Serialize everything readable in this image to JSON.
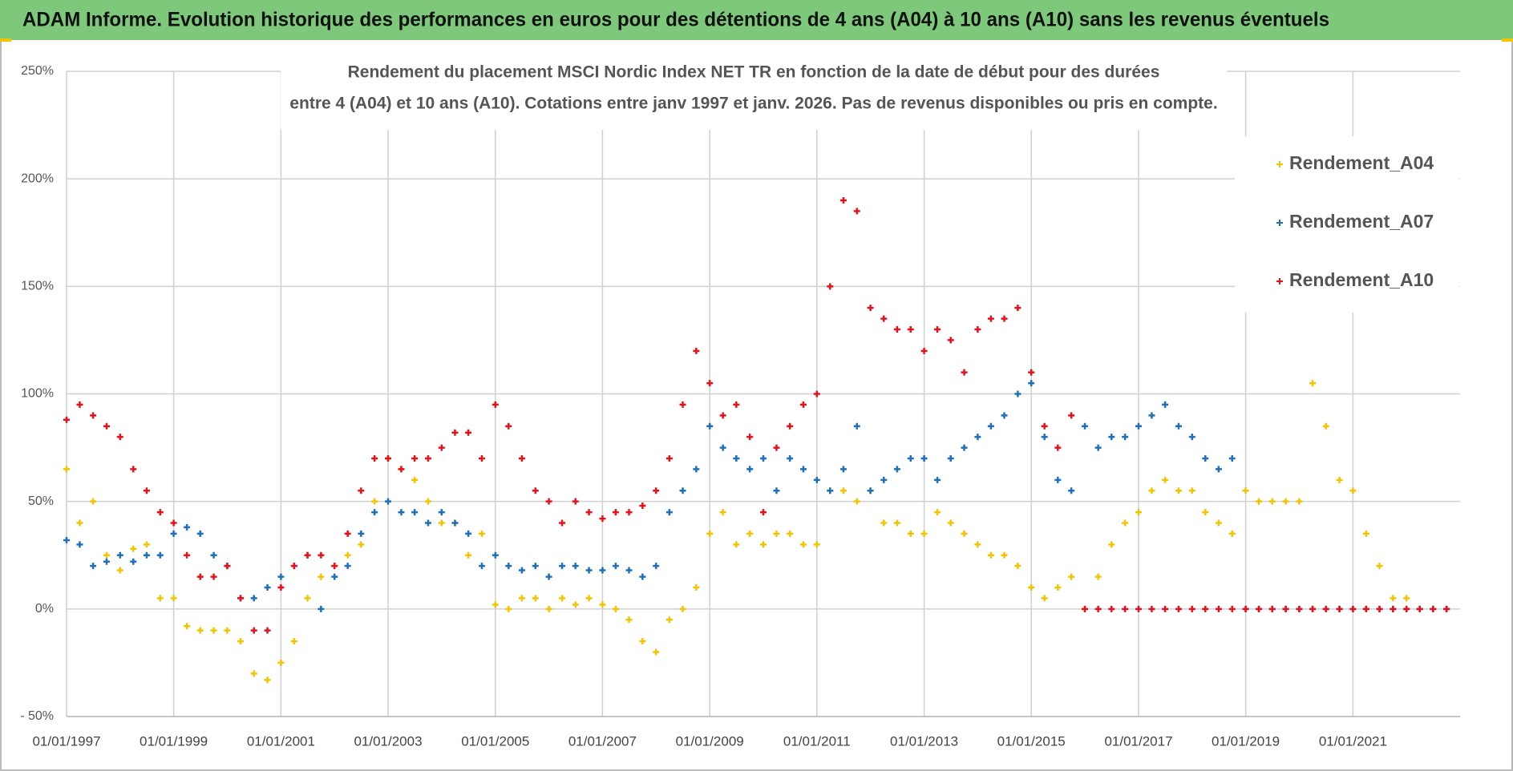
{
  "header": {
    "title": "ADAM Informe. Evolution historique des performances en euros pour des détentions de 4 ans (A04) à 10 ans (A10) sans les revenus éventuels"
  },
  "chart_data": {
    "type": "scatter",
    "title": [
      "Rendement du placement MSCI Nordic Index NET TR en fonction de la date de début pour des durées",
      "entre 4 (A04) et 10 ans (A10). Cotations entre janv 1997 et janv. 2026. Pas de revenus disponibles ou pris en compte."
    ],
    "x": [
      "01/01/1997",
      "01/04/1997",
      "01/07/1997",
      "01/10/1997",
      "01/01/1998",
      "01/04/1998",
      "01/07/1998",
      "01/10/1998",
      "01/01/1999",
      "01/04/1999",
      "01/07/1999",
      "01/10/1999",
      "01/01/2000",
      "01/04/2000",
      "01/07/2000",
      "01/10/2000",
      "01/01/2001",
      "01/04/2001",
      "01/07/2001",
      "01/10/2001",
      "01/01/2002",
      "01/04/2002",
      "01/07/2002",
      "01/10/2002",
      "01/01/2003",
      "01/04/2003",
      "01/07/2003",
      "01/10/2003",
      "01/01/2004",
      "01/04/2004",
      "01/07/2004",
      "01/10/2004",
      "01/01/2005",
      "01/04/2005",
      "01/07/2005",
      "01/10/2005",
      "01/01/2006",
      "01/04/2006",
      "01/07/2006",
      "01/10/2006",
      "01/01/2007",
      "01/04/2007",
      "01/07/2007",
      "01/10/2007",
      "01/01/2008",
      "01/04/2008",
      "01/07/2008",
      "01/10/2008",
      "01/01/2009",
      "01/04/2009",
      "01/07/2009",
      "01/10/2009",
      "01/01/2010",
      "01/04/2010",
      "01/07/2010",
      "01/10/2010",
      "01/01/2011",
      "01/04/2011",
      "01/07/2011",
      "01/10/2011",
      "01/01/2012",
      "01/04/2012",
      "01/07/2012",
      "01/10/2012",
      "01/01/2013",
      "01/04/2013",
      "01/07/2013",
      "01/10/2013",
      "01/01/2014",
      "01/04/2014",
      "01/07/2014",
      "01/10/2014",
      "01/01/2015",
      "01/04/2015",
      "01/07/2015",
      "01/10/2015",
      "01/01/2016",
      "01/04/2016",
      "01/07/2016",
      "01/10/2016",
      "01/01/2017",
      "01/04/2017",
      "01/07/2017",
      "01/10/2017",
      "01/01/2018",
      "01/04/2018",
      "01/07/2018",
      "01/10/2018",
      "01/01/2019",
      "01/04/2019",
      "01/07/2019",
      "01/10/2019",
      "01/01/2020",
      "01/04/2020",
      "01/07/2020",
      "01/10/2020",
      "01/01/2021",
      "01/04/2021",
      "01/07/2021",
      "01/10/2021",
      "01/01/2022",
      "01/04/2022",
      "01/07/2022",
      "01/10/2022"
    ],
    "series": [
      {
        "name": "Rendement_A04",
        "color": "#f5c400",
        "values": [
          65,
          40,
          50,
          25,
          18,
          28,
          30,
          5,
          5,
          -8,
          -10,
          -10,
          -10,
          -15,
          -30,
          -33,
          -25,
          -15,
          5,
          15,
          20,
          25,
          30,
          50,
          70,
          65,
          60,
          50,
          40,
          40,
          25,
          35,
          2,
          0,
          5,
          5,
          0,
          5,
          2,
          5,
          2,
          0,
          -5,
          -15,
          -20,
          -5,
          0,
          10,
          35,
          45,
          30,
          35,
          30,
          35,
          35,
          30,
          30,
          55,
          55,
          50,
          55,
          40,
          40,
          35,
          35,
          45,
          40,
          35,
          30,
          25,
          25,
          20,
          10,
          5,
          10,
          15,
          0,
          15,
          30,
          40,
          45,
          55,
          60,
          55,
          55,
          45,
          40,
          35,
          55,
          50,
          50,
          50,
          50,
          105,
          85,
          60,
          55,
          35,
          20,
          5,
          5,
          0,
          0,
          0
        ]
      },
      {
        "name": "Rendement_A07",
        "color": "#1f6fbd",
        "values": [
          32,
          30,
          20,
          22,
          25,
          22,
          25,
          25,
          35,
          38,
          35,
          25,
          20,
          5,
          5,
          10,
          15,
          20,
          25,
          0,
          15,
          20,
          35,
          45,
          50,
          45,
          45,
          40,
          45,
          40,
          35,
          20,
          25,
          20,
          18,
          20,
          15,
          20,
          20,
          18,
          18,
          20,
          18,
          15,
          20,
          45,
          55,
          65,
          85,
          75,
          70,
          65,
          70,
          55,
          70,
          65,
          60,
          55,
          65,
          85,
          55,
          60,
          65,
          70,
          70,
          60,
          70,
          75,
          80,
          85,
          90,
          100,
          105,
          80,
          60,
          55,
          85,
          75,
          80,
          80,
          85,
          90,
          95,
          85,
          80,
          70,
          65,
          70,
          0,
          0,
          0,
          0,
          0,
          0,
          0,
          0,
          0,
          0,
          0,
          0,
          0,
          0,
          0,
          0
        ]
      },
      {
        "name": "Rendement_A10",
        "color": "#e8111a",
        "values": [
          88,
          95,
          90,
          85,
          80,
          65,
          55,
          45,
          40,
          25,
          15,
          15,
          20,
          5,
          -10,
          -10,
          10,
          20,
          25,
          25,
          20,
          35,
          55,
          70,
          70,
          65,
          70,
          70,
          75,
          82,
          82,
          70,
          95,
          85,
          70,
          55,
          50,
          40,
          50,
          45,
          42,
          45,
          45,
          48,
          55,
          70,
          95,
          120,
          105,
          90,
          95,
          80,
          45,
          75,
          85,
          95,
          100,
          150,
          190,
          185,
          140,
          135,
          130,
          130,
          120,
          130,
          125,
          110,
          130,
          135,
          135,
          140,
          110,
          85,
          75,
          90,
          0,
          0,
          0,
          0,
          0,
          0,
          0,
          0,
          0,
          0,
          0,
          0,
          0,
          0,
          0,
          0,
          0,
          0,
          0,
          0,
          0,
          0,
          0,
          0,
          0,
          0,
          0,
          0
        ]
      }
    ],
    "xlim": [
      "01/01/1997",
      "01/01/2023"
    ],
    "xticks": [
      "01/01/1997",
      "01/01/1999",
      "01/01/2001",
      "01/01/2003",
      "01/01/2005",
      "01/01/2007",
      "01/01/2009",
      "01/01/2011",
      "01/01/2013",
      "01/01/2015",
      "01/01/2017",
      "01/01/2019",
      "01/01/2021"
    ],
    "ylim": [
      -50,
      250
    ],
    "yticks": [
      {
        "value": -50,
        "label": "- 50%"
      },
      {
        "value": 0,
        "label": "0%"
      },
      {
        "value": 50,
        "label": "50%"
      },
      {
        "value": 100,
        "label": "100%"
      },
      {
        "value": 150,
        "label": "150%"
      },
      {
        "value": 200,
        "label": "200%"
      },
      {
        "value": 250,
        "label": "250%"
      }
    ],
    "grid": true,
    "legend": "upper right"
  }
}
